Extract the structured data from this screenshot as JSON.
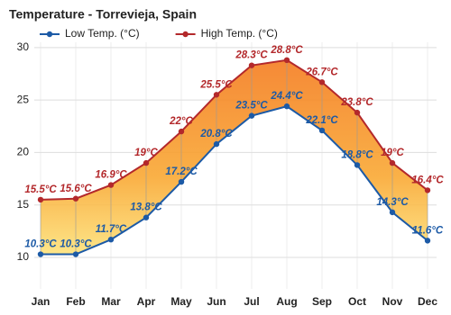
{
  "chart_data": {
    "type": "range-line",
    "title": "Temperature - Torrevieja, Spain",
    "categories": [
      "Jan",
      "Feb",
      "Mar",
      "Apr",
      "May",
      "Jun",
      "Jul",
      "Aug",
      "Sep",
      "Oct",
      "Nov",
      "Dec"
    ],
    "series": [
      {
        "name": "Low Temp. (°C)",
        "color": "#1c5aa6",
        "values": [
          10.3,
          10.3,
          11.7,
          13.8,
          17.2,
          20.8,
          23.5,
          24.4,
          22.1,
          18.8,
          14.3,
          11.6
        ],
        "value_labels": [
          "10.3°C",
          "10.3°C",
          "11.7°C",
          "13.8°C",
          "17.2°C",
          "20.8°C",
          "23.5°C",
          "24.4°C",
          "22.1°C",
          "18.8°C",
          "14.3°C",
          "11.6°C"
        ]
      },
      {
        "name": "High Temp. (°C)",
        "color": "#b3282b",
        "values": [
          15.5,
          15.6,
          16.9,
          19,
          22,
          25.5,
          28.3,
          28.8,
          26.7,
          23.8,
          19,
          16.4
        ],
        "value_labels": [
          "15.5°C",
          "15.6°C",
          "16.9°C",
          "19°C",
          "22°C",
          "25.5°C",
          "28.3°C",
          "28.8°C",
          "26.7°C",
          "23.8°C",
          "19°C",
          "16.4°C"
        ]
      }
    ],
    "ylim": [
      7,
      30.5
    ],
    "yticks": [
      10,
      15,
      20,
      25,
      30
    ],
    "grid": true
  }
}
